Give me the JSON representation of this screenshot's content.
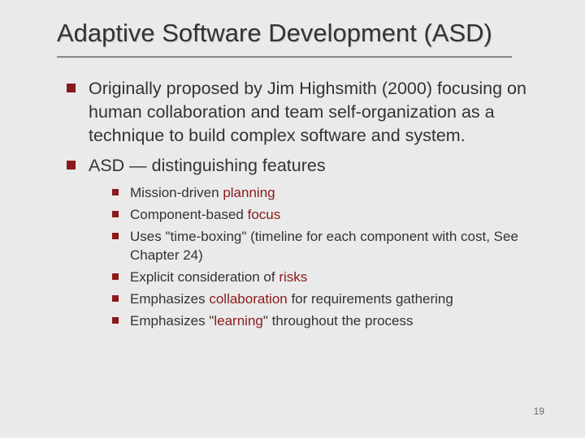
{
  "slide": {
    "title": "Adaptive Software Development (ASD)",
    "bullets": [
      {
        "text": "Originally proposed by Jim Highsmith (2000) focusing on human collaboration and team self-organization as a technique to build complex software and system."
      },
      {
        "text": "ASD — distinguishing  features",
        "sub": [
          {
            "pre": "Mission-driven",
            "accent": " planning",
            "post": ""
          },
          {
            "pre": "Component-based",
            "accent": " focus",
            "post": ""
          },
          {
            "pre": "Uses \"time-boxing\" (timeline for each component with cost, See Chapter 24)",
            "accent": "",
            "post": ""
          },
          {
            "pre": "Explicit consideration of",
            "accent": " risks",
            "post": ""
          },
          {
            "pre": "Emphasizes",
            "accent": " collaboration ",
            "post": "for requirements gathering"
          },
          {
            "pre": "Emphasizes \"",
            "accent": "learning",
            "post": "\" throughout the process"
          }
        ]
      }
    ],
    "page_number": "19",
    "colors": {
      "background": "#eaeaea",
      "text": "#333333",
      "accent": "#8B1A1A",
      "underline": "#8b8b8b"
    }
  }
}
